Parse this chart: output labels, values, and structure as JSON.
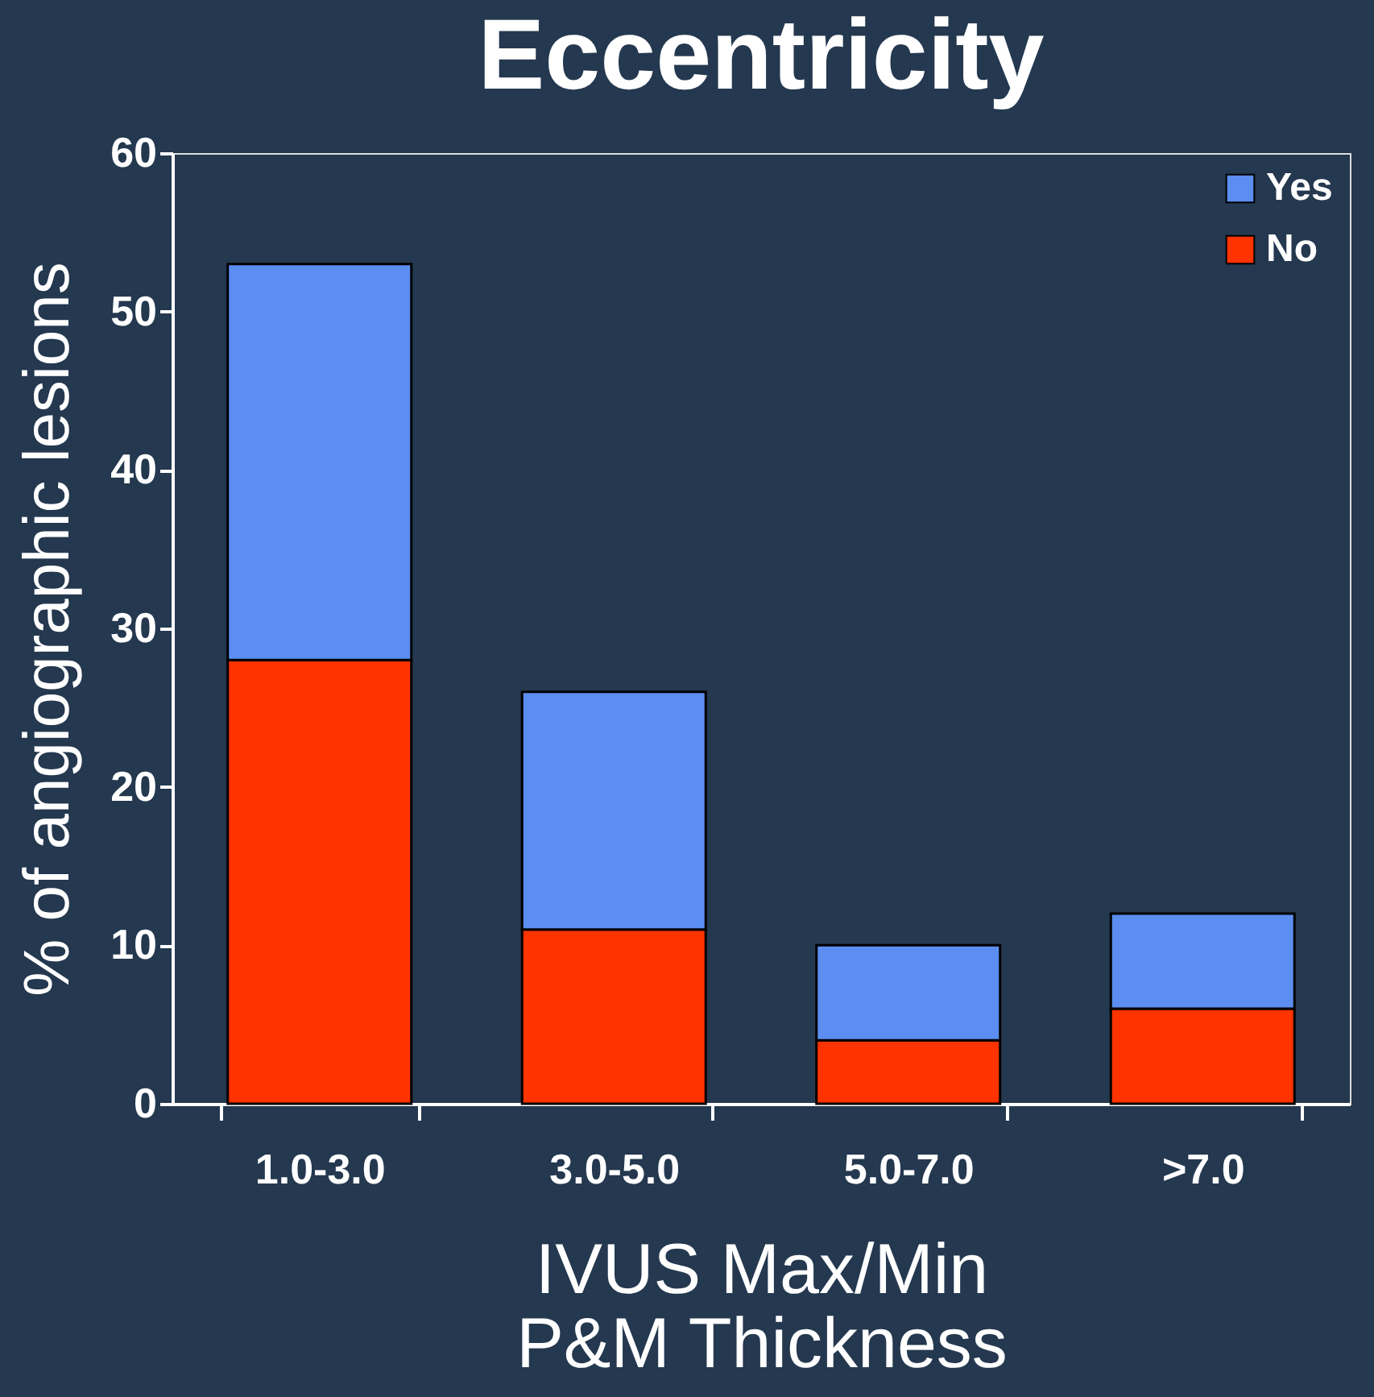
{
  "chart_data": {
    "type": "bar",
    "title": "Eccentricity",
    "xlabel": "IVUS Max/Min\nP&M Thickness",
    "ylabel": "% of angiographic lesions",
    "categories": [
      "1.0-3.0",
      "3.0-5.0",
      "5.0-7.0",
      ">7.0"
    ],
    "stacked": true,
    "series": [
      {
        "name": "No",
        "color": "#ff3300",
        "values": [
          28,
          11,
          4,
          6
        ]
      },
      {
        "name": "Yes",
        "color": "#5b8ef0",
        "values": [
          25,
          15,
          6,
          6
        ]
      }
    ],
    "ylim": [
      0,
      60
    ],
    "yticks": [
      0,
      10,
      20,
      30,
      40,
      50,
      60
    ],
    "grid": false,
    "legend": "top right"
  }
}
